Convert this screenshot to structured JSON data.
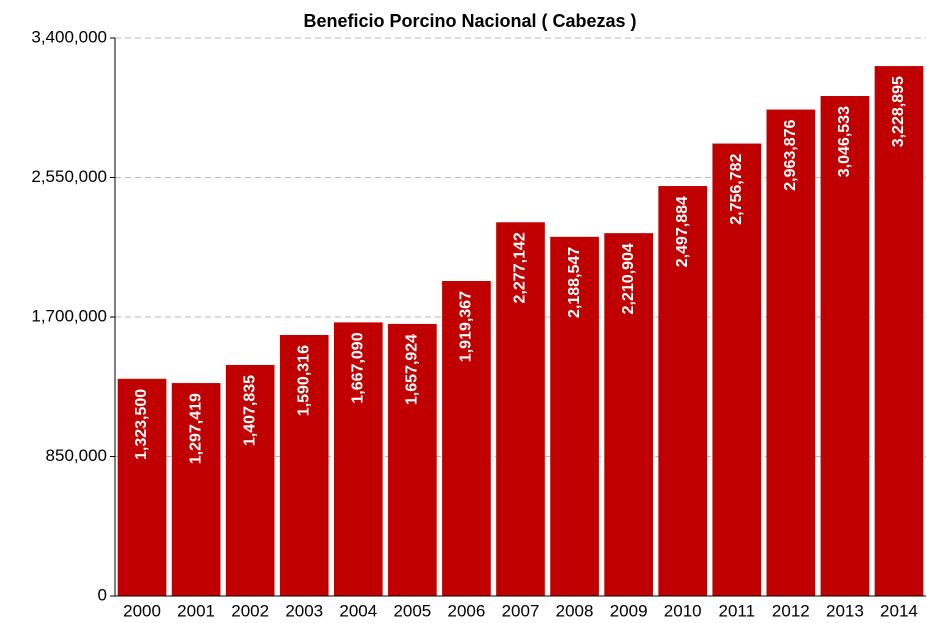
{
  "chart_data": {
    "type": "bar",
    "title": "Beneficio Porcino Nacional ( Cabezas )",
    "categories": [
      "2000",
      "2001",
      "2002",
      "2003",
      "2004",
      "2005",
      "2006",
      "2007",
      "2008",
      "2009",
      "2010",
      "2011",
      "2012",
      "2013",
      "2014"
    ],
    "values": [
      1323500,
      1297419,
      1407835,
      1590316,
      1667090,
      1657924,
      1919367,
      2277142,
      2188547,
      2210904,
      2497884,
      2756782,
      2963876,
      3046533,
      3228895
    ],
    "value_labels": [
      "1,323,500",
      "1,297,419",
      "1,407,835",
      "1,590,316",
      "1,667,090",
      "1,657,924",
      "1,919,367",
      "2,277,142",
      "2,188,547",
      "2,210,904",
      "2,497,884",
      "2,756,782",
      "2,963,876",
      "3,046,533",
      "3,228,895"
    ],
    "color": "#c00000",
    "ylim": [
      0,
      3400000
    ],
    "yticks": [
      0,
      {
        "value": 850000,
        "label": "850,000"
      },
      {
        "value": 1700000,
        "label": "1,700,000"
      },
      {
        "value": 2550000,
        "label": "2,550,000"
      },
      {
        "value": 3400000,
        "label": "3,400,000"
      }
    ],
    "grid": true
  }
}
